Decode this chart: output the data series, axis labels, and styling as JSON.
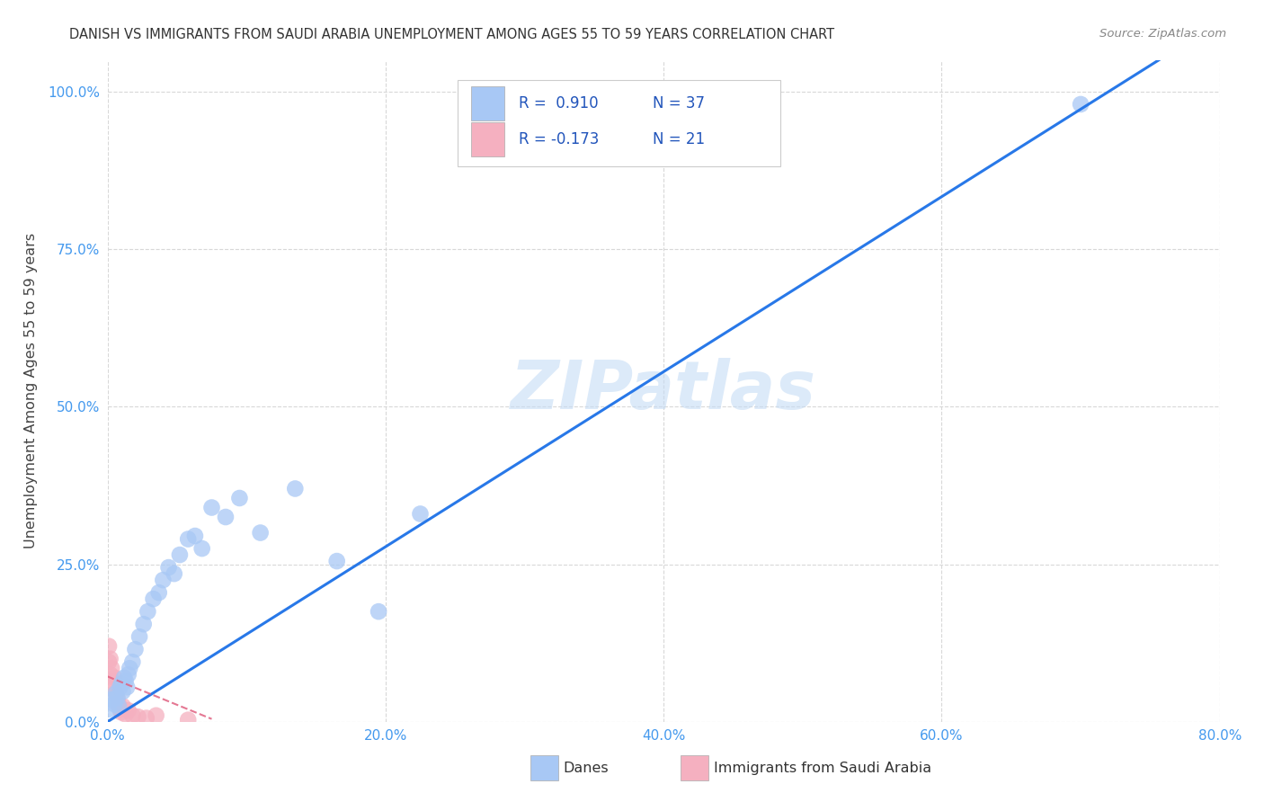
{
  "title": "DANISH VS IMMIGRANTS FROM SAUDI ARABIA UNEMPLOYMENT AMONG AGES 55 TO 59 YEARS CORRELATION CHART",
  "source": "Source: ZipAtlas.com",
  "ylabel": "Unemployment Among Ages 55 to 59 years",
  "watermark": "ZIPatlas",
  "legend_label_1": "Danes",
  "legend_label_2": "Immigrants from Saudi Arabia",
  "r1": 0.91,
  "n1": 37,
  "r2": -0.173,
  "n2": 21,
  "color_danes": "#a8c8f5",
  "color_immigrants": "#f5b0c0",
  "line_color_danes": "#2878e8",
  "line_color_immigrants": "#e06080",
  "danes_x": [
    0.001,
    0.003,
    0.005,
    0.006,
    0.007,
    0.008,
    0.009,
    0.01,
    0.011,
    0.012,
    0.013,
    0.014,
    0.015,
    0.016,
    0.018,
    0.02,
    0.023,
    0.026,
    0.029,
    0.033,
    0.037,
    0.04,
    0.044,
    0.048,
    0.052,
    0.058,
    0.063,
    0.068,
    0.075,
    0.085,
    0.095,
    0.11,
    0.135,
    0.165,
    0.195,
    0.225,
    0.7
  ],
  "danes_y": [
    0.02,
    0.035,
    0.028,
    0.045,
    0.038,
    0.025,
    0.055,
    0.06,
    0.048,
    0.07,
    0.065,
    0.055,
    0.075,
    0.085,
    0.095,
    0.115,
    0.135,
    0.155,
    0.175,
    0.195,
    0.205,
    0.225,
    0.245,
    0.235,
    0.265,
    0.29,
    0.295,
    0.275,
    0.34,
    0.325,
    0.355,
    0.3,
    0.37,
    0.255,
    0.175,
    0.33,
    0.98
  ],
  "immigrants_x": [
    0.001,
    0.001,
    0.002,
    0.002,
    0.003,
    0.003,
    0.004,
    0.005,
    0.006,
    0.007,
    0.008,
    0.009,
    0.01,
    0.011,
    0.013,
    0.015,
    0.018,
    0.022,
    0.028,
    0.035,
    0.058
  ],
  "immigrants_y": [
    0.095,
    0.12,
    0.075,
    0.1,
    0.085,
    0.065,
    0.055,
    0.07,
    0.045,
    0.038,
    0.028,
    0.02,
    0.015,
    0.025,
    0.012,
    0.018,
    0.01,
    0.008,
    0.006,
    0.01,
    0.003
  ],
  "xlim": [
    0.0,
    0.8
  ],
  "ylim": [
    0.0,
    1.05
  ],
  "xticks": [
    0.0,
    0.2,
    0.4,
    0.6,
    0.8
  ],
  "xtick_labels": [
    "0.0%",
    "20.0%",
    "40.0%",
    "60.0%",
    "80.0%"
  ],
  "yticks": [
    0.0,
    0.25,
    0.5,
    0.75,
    1.0
  ],
  "ytick_labels": [
    "0.0%",
    "25.0%",
    "50.0%",
    "75.0%",
    "100.0%"
  ],
  "background_color": "#ffffff",
  "grid_color": "#d8d8d8"
}
